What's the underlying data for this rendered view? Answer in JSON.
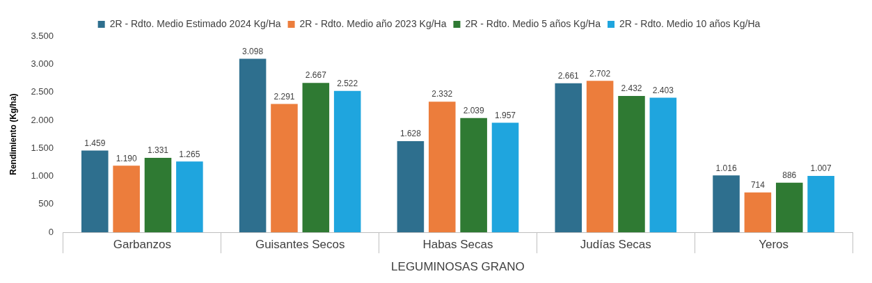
{
  "chart_data": {
    "type": "bar",
    "xlabel": "LEGUMINOSAS GRANO",
    "ylabel": "Rendimiento (Kg/ha)",
    "categories": [
      "Garbanzos",
      "Guisantes Secos",
      "Habas Secas",
      "Judías Secas",
      "Yeros"
    ],
    "series": [
      {
        "name": "2R - Rdto. Medio Estimado 2024 Kg/Ha",
        "color": "#2e6f8e",
        "values": [
          1459,
          3098,
          1628,
          2661,
          1016
        ],
        "value_labels": [
          "1.459",
          "3.098",
          "1.628",
          "2.661",
          "1.016"
        ]
      },
      {
        "name": "2R - Rdto. Medio año 2023 Kg/Ha",
        "color": "#ec7d3c",
        "values": [
          1190,
          2291,
          2332,
          2702,
          714
        ],
        "value_labels": [
          "1.190",
          "2.291",
          "2.332",
          "2.702",
          "714"
        ]
      },
      {
        "name": "2R - Rdto. Medio 5 años Kg/Ha",
        "color": "#2f7a33",
        "values": [
          1331,
          2667,
          2039,
          2432,
          886
        ],
        "value_labels": [
          "1.331",
          "2.667",
          "2.039",
          "2.432",
          "886"
        ]
      },
      {
        "name": "2R - Rdto. Medio 10 años Kg/Ha",
        "color": "#1fa5de",
        "values": [
          1265,
          2522,
          1957,
          2403,
          1007
        ],
        "value_labels": [
          "1.265",
          "2.522",
          "1.957",
          "2.403",
          "1.007"
        ]
      }
    ],
    "ylim": [
      0,
      3500
    ],
    "yticks": [
      {
        "value": 0,
        "label": "0"
      },
      {
        "value": 500,
        "label": "500"
      },
      {
        "value": 1000,
        "label": "1.000"
      },
      {
        "value": 1500,
        "label": "1.500"
      },
      {
        "value": 2000,
        "label": "2.000"
      },
      {
        "value": 2500,
        "label": "2.500"
      },
      {
        "value": 3000,
        "label": "3.000"
      },
      {
        "value": 3500,
        "label": "3.500"
      }
    ],
    "grid": false,
    "legend": "top"
  }
}
